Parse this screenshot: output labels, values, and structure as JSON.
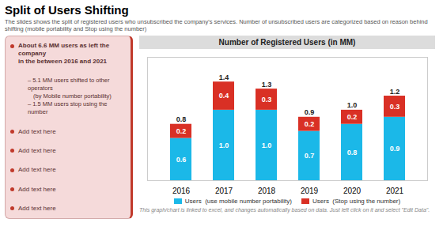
{
  "chart_data": {
    "type": "bar",
    "stacked": true,
    "title": "Split of Users Shifting",
    "subtitle": "The slides shows the split of registered users who unsubscribed the company's services. Number of unsubscribed users are categorized based on reason behind shifting (mobile portability and Stop using the number)",
    "chart_title": "Number of Registered Users (in MM)",
    "annotations": [
      [
        "About 6.6 MM users as left the company",
        "in the between 2016 and 2021"
      ],
      [
        "– 5.1 MM users shifted to other operators",
        "(by Mobile number portability)",
        "– 1.5 MM users stop using the number"
      ],
      [
        "Add text here"
      ],
      [
        "Add text here"
      ],
      [
        "Add text here"
      ],
      [
        "Add text here"
      ],
      [
        "Add text here"
      ]
    ],
    "footer": "This graph/chart is linked to excel, and changes automatically based on data. Just left click on it and select \"Edit Data\".",
    "categories": [
      "2016",
      "2017",
      "2018",
      "2019",
      "2020",
      "2021"
    ],
    "series": [
      {
        "name": "Users  (use mobile number portability)",
        "color": "#1BB8E8",
        "values": [
          0.6,
          1.0,
          1.0,
          0.7,
          0.8,
          0.9
        ],
        "value_labels": [
          "0.6",
          "1.0",
          "1.0",
          "0.7",
          "0.8",
          "0.9"
        ]
      },
      {
        "name": "Users  (Stop using the number)",
        "color": "#D93025",
        "values": [
          0.2,
          0.4,
          0.3,
          0.2,
          0.2,
          0.3
        ],
        "value_labels": [
          "0.2",
          "0.4",
          "0.3",
          "0.2",
          "0.2",
          "0.3"
        ]
      }
    ],
    "totals": [
      0.8,
      1.4,
      1.3,
      0.9,
      1.0,
      1.2
    ],
    "total_labels": [
      "0.8",
      "1.4",
      "1.3",
      "0.9",
      "1.0",
      "1.2"
    ],
    "ylim": [
      0,
      1.75
    ],
    "tick_labels": "x",
    "data_labels": true,
    "grid": false,
    "legend": "bottom"
  }
}
